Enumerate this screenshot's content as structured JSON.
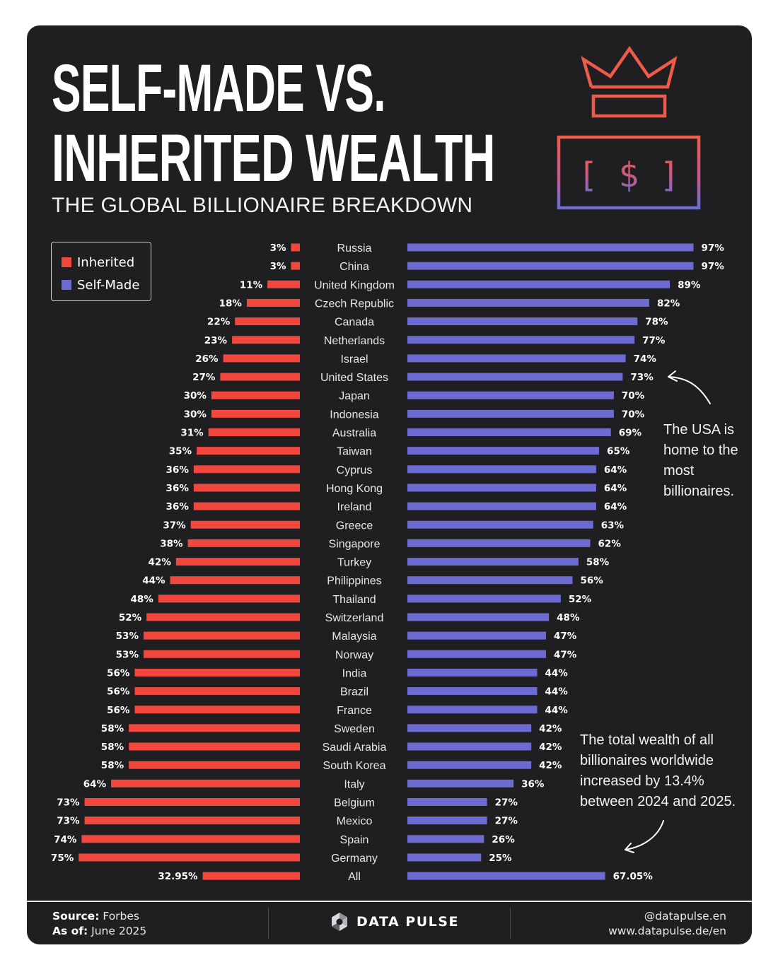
{
  "header": {
    "title_line1": "SELF-MADE VS.",
    "title_line2": "INHERITED WEALTH",
    "subtitle": "THE GLOBAL BILLIONAIRE BREAKDOWN"
  },
  "icon": {
    "dollar_symbol": "[ $ ]"
  },
  "legend": {
    "inherited_label": "Inherited",
    "selfmade_label": "Self-Made"
  },
  "colors": {
    "inherited": "#f2473d",
    "selfmade": "#6b6bd1",
    "background": "#1f1f21",
    "text": "#ffffff"
  },
  "annotations": {
    "usa_note": "The USA is home to the most billionaires.",
    "wealth_note": "The total wealth of all billionaires worldwide increased by 13.4% between 2024 and 2025."
  },
  "footer": {
    "source_label": "Source:",
    "source_value": "Forbes",
    "asof_label": "As of:",
    "asof_value": "June 2025",
    "brand": "DATA PULSE",
    "handle": "@datapulse.en",
    "website": "www.datapulse.de/en"
  },
  "chart_data": {
    "type": "bar",
    "orientation": "horizontal-butterfly",
    "title": "SELF-MADE VS. INHERITED WEALTH",
    "subtitle": "THE GLOBAL BILLIONAIRE BREAKDOWN",
    "unit": "%",
    "categories": [
      "Russia",
      "China",
      "United Kingdom",
      "Czech Republic",
      "Canada",
      "Netherlands",
      "Israel",
      "United States",
      "Japan",
      "Indonesia",
      "Australia",
      "Taiwan",
      "Cyprus",
      "Hong Kong",
      "Ireland",
      "Greece",
      "Singapore",
      "Turkey",
      "Philippines",
      "Thailand",
      "Switzerland",
      "Malaysia",
      "Norway",
      "India",
      "Brazil",
      "France",
      "Sweden",
      "Saudi Arabia",
      "South Korea",
      "Italy",
      "Belgium",
      "Mexico",
      "Spain",
      "Germany",
      "All"
    ],
    "series": [
      {
        "name": "Inherited",
        "values": [
          3,
          3,
          11,
          18,
          22,
          23,
          26,
          27,
          30,
          30,
          31,
          35,
          36,
          36,
          36,
          37,
          38,
          42,
          44,
          48,
          52,
          53,
          53,
          56,
          56,
          56,
          58,
          58,
          58,
          64,
          73,
          73,
          74,
          75,
          32.95
        ],
        "labels": [
          "3%",
          "3%",
          "11%",
          "18%",
          "22%",
          "23%",
          "26%",
          "27%",
          "30%",
          "30%",
          "31%",
          "35%",
          "36%",
          "36%",
          "36%",
          "37%",
          "38%",
          "42%",
          "44%",
          "48%",
          "52%",
          "53%",
          "53%",
          "56%",
          "56%",
          "56%",
          "58%",
          "58%",
          "58%",
          "64%",
          "73%",
          "73%",
          "74%",
          "75%",
          "32.95%"
        ]
      },
      {
        "name": "Self-Made",
        "values": [
          97,
          97,
          89,
          82,
          78,
          77,
          74,
          73,
          70,
          70,
          69,
          65,
          64,
          64,
          64,
          63,
          62,
          58,
          56,
          52,
          48,
          47,
          47,
          44,
          44,
          44,
          42,
          42,
          42,
          36,
          27,
          27,
          26,
          25,
          67.05
        ],
        "labels": [
          "97%",
          "97%",
          "89%",
          "82%",
          "78%",
          "77%",
          "74%",
          "73%",
          "70%",
          "70%",
          "69%",
          "65%",
          "64%",
          "64%",
          "64%",
          "63%",
          "62%",
          "58%",
          "56%",
          "52%",
          "48%",
          "47%",
          "47%",
          "44%",
          "44%",
          "44%",
          "42%",
          "42%",
          "42%",
          "36%",
          "27%",
          "27%",
          "26%",
          "25%",
          "67.05%"
        ]
      }
    ],
    "xlim": [
      0,
      100
    ],
    "legend_position": "top-left"
  }
}
